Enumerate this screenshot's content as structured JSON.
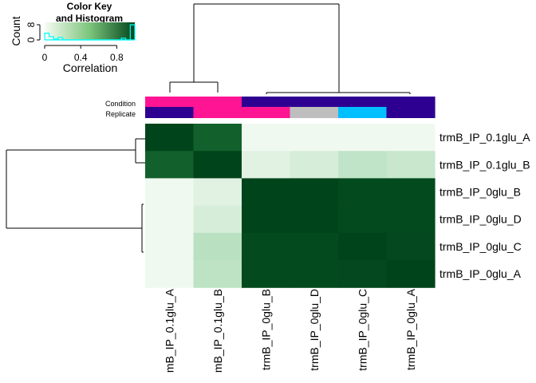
{
  "chart_data": {
    "type": "heatmap",
    "title": "",
    "rows": [
      "trmB_IP_0.1glu_A",
      "trmB_IP_0.1glu_B",
      "trmB_IP_0glu_B",
      "trmB_IP_0glu_D",
      "trmB_IP_0glu_C",
      "trmB_IP_0glu_A"
    ],
    "columns": [
      "mB_IP_0.1glu_A",
      "mB_IP_0.1glu_B",
      "trmB_IP_0glu_B",
      "trmB_IP_0glu_D",
      "trmB_IP_0glu_C",
      "trmB_IP_0glu_A"
    ],
    "values": [
      [
        1.0,
        0.86,
        0.02,
        0.02,
        0.02,
        0.02
      ],
      [
        0.86,
        1.0,
        0.06,
        0.09,
        0.15,
        0.13
      ],
      [
        0.02,
        0.06,
        1.0,
        1.0,
        0.97,
        0.97
      ],
      [
        0.02,
        0.09,
        1.0,
        1.0,
        0.97,
        0.97
      ],
      [
        0.02,
        0.17,
        0.97,
        0.97,
        1.0,
        0.98
      ],
      [
        0.02,
        0.16,
        0.97,
        0.97,
        0.98,
        1.0
      ]
    ],
    "color_key": {
      "title_line1": "Color Key",
      "title_line2": "and Histogram",
      "xlabel": "Correlation",
      "ylabel": "Count",
      "x_ticks": [
        "0",
        "0.4",
        "0.8"
      ],
      "y_ticks": [
        "0",
        "8"
      ],
      "range": [
        0,
        1
      ],
      "low_color": "#f7fcf5",
      "mid_color": "#41ab5d",
      "high_color": "#00441b",
      "histogram_line_color": "#00ffff"
    },
    "annotations": {
      "labels": [
        "Condition",
        "Replicate"
      ],
      "condition": [
        "#ff1493",
        "#ff1493",
        "#2e0092",
        "#2e0092",
        "#2e0092",
        "#2e0092"
      ],
      "replicate": [
        "#2e0092",
        "#ff1493",
        "#ff1493",
        "#bebebe",
        "#00bfff",
        "#2e0092"
      ]
    }
  }
}
